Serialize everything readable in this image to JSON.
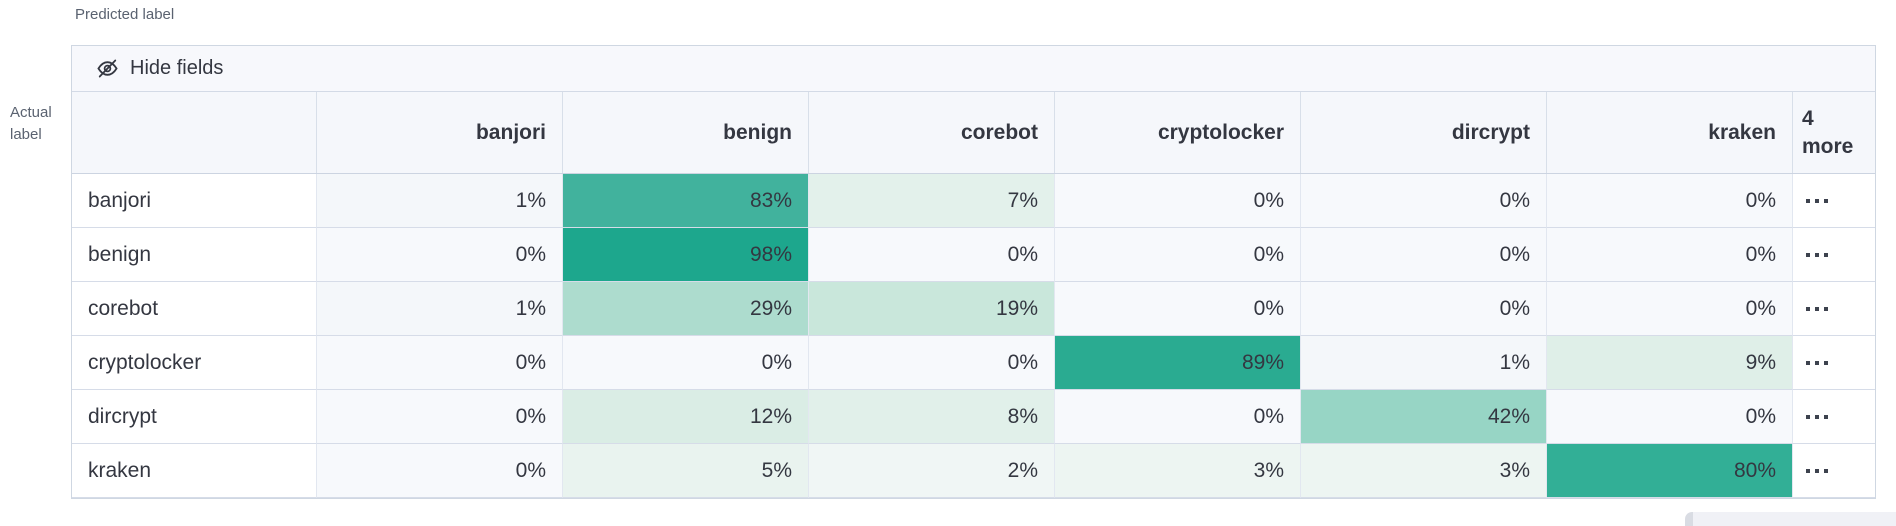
{
  "axes": {
    "predicted": "Predicted label",
    "actual_line1": "Actual",
    "actual_line2": "label"
  },
  "toolbar": {
    "hide_fields_label": "Hide fields",
    "icon": "eye-closed-icon"
  },
  "header": {
    "columns": [
      "banjori",
      "benign",
      "corebot",
      "cryptolocker",
      "dircrypt",
      "kraken"
    ],
    "more_line1": "4",
    "more_line2": "more"
  },
  "matrix": {
    "rows": [
      {
        "label": "banjori",
        "cells": [
          {
            "text": "1%",
            "bg": "#f4f7fa"
          },
          {
            "text": "83%",
            "bg": "#41b29d"
          },
          {
            "text": "7%",
            "bg": "#e3f1eb"
          },
          {
            "text": "0%",
            "bg": "#f7f9fc"
          },
          {
            "text": "0%",
            "bg": "#f7f9fc"
          },
          {
            "text": "0%",
            "bg": "#f7f9fc"
          }
        ]
      },
      {
        "label": "benign",
        "cells": [
          {
            "text": "0%",
            "bg": "#f7f9fc"
          },
          {
            "text": "98%",
            "bg": "#1da78d"
          },
          {
            "text": "0%",
            "bg": "#f7f9fc"
          },
          {
            "text": "0%",
            "bg": "#f7f9fc"
          },
          {
            "text": "0%",
            "bg": "#f7f9fc"
          },
          {
            "text": "0%",
            "bg": "#f7f9fc"
          }
        ]
      },
      {
        "label": "corebot",
        "cells": [
          {
            "text": "1%",
            "bg": "#f4f7fa"
          },
          {
            "text": "29%",
            "bg": "#addcce"
          },
          {
            "text": "19%",
            "bg": "#c9e7db"
          },
          {
            "text": "0%",
            "bg": "#f7f9fc"
          },
          {
            "text": "0%",
            "bg": "#f7f9fc"
          },
          {
            "text": "0%",
            "bg": "#f7f9fc"
          }
        ]
      },
      {
        "label": "cryptolocker",
        "cells": [
          {
            "text": "0%",
            "bg": "#f7f9fc"
          },
          {
            "text": "0%",
            "bg": "#f7f9fc"
          },
          {
            "text": "0%",
            "bg": "#f7f9fc"
          },
          {
            "text": "89%",
            "bg": "#2aab91"
          },
          {
            "text": "1%",
            "bg": "#f4f7fa"
          },
          {
            "text": "9%",
            "bg": "#dfefe8"
          }
        ]
      },
      {
        "label": "dircrypt",
        "cells": [
          {
            "text": "0%",
            "bg": "#f7f9fc"
          },
          {
            "text": "12%",
            "bg": "#daede5"
          },
          {
            "text": "8%",
            "bg": "#e1f0ea"
          },
          {
            "text": "0%",
            "bg": "#f7f9fc"
          },
          {
            "text": "42%",
            "bg": "#97d5c5"
          },
          {
            "text": "0%",
            "bg": "#f7f9fc"
          }
        ]
      },
      {
        "label": "kraken",
        "cells": [
          {
            "text": "0%",
            "bg": "#f7f9fc"
          },
          {
            "text": "5%",
            "bg": "#e9f3ef"
          },
          {
            "text": "2%",
            "bg": "#f0f6f5"
          },
          {
            "text": "3%",
            "bg": "#edf5f2"
          },
          {
            "text": "3%",
            "bg": "#edf5f2"
          },
          {
            "text": "80%",
            "bg": "#32af96"
          }
        ]
      }
    ],
    "hidden_columns_icon": "boxes-horizontal-icon"
  },
  "colors": {
    "accent_teal": "#54b399",
    "grid_border": "#d3dae6",
    "header_bg": "#f5f7fb",
    "toolbar_bg": "#f7f8fc",
    "text": "#343741",
    "axis_text": "#5a6270"
  }
}
